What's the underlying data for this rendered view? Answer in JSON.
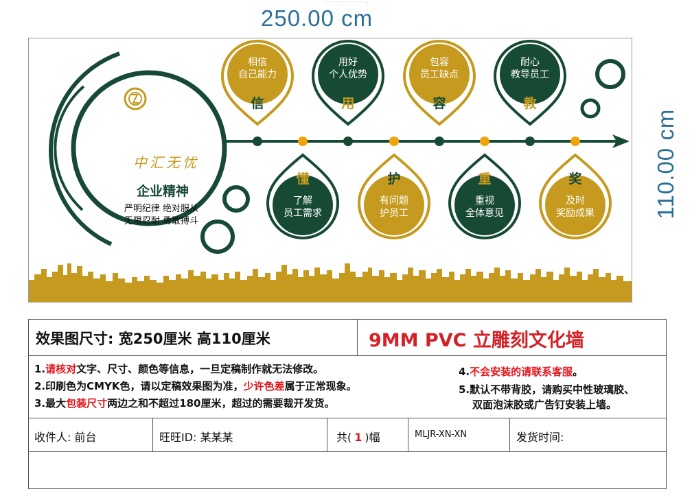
{
  "dimensions": {
    "width": "250.00 cm",
    "height": "110.00 cm"
  },
  "brand": {
    "name": "中汇无忧",
    "spirit": "企业精神",
    "motto_line1": "严明纪律  绝对服从",
    "motto_line2": "无限忍耐  勇敢搏斗"
  },
  "colors": {
    "green": "#174a35",
    "gold": "#c59a1f",
    "red": "#e3151b",
    "blue": "#2a6f98"
  },
  "top_drops": [
    {
      "char": "信",
      "line1": "相信",
      "line2": "自己能力",
      "color": "gold"
    },
    {
      "char": "用",
      "line1": "用好",
      "line2": "个人优势",
      "color": "green"
    },
    {
      "char": "容",
      "line1": "包容",
      "line2": "员工缺点",
      "color": "gold"
    },
    {
      "char": "教",
      "line1": "耐心",
      "line2": "教导员工",
      "color": "green"
    }
  ],
  "bottom_drops": [
    {
      "char": "懂",
      "line1": "了解",
      "line2": "员工需求",
      "color": "green"
    },
    {
      "char": "护",
      "line1": "有问题",
      "line2": "护员工",
      "color": "gold"
    },
    {
      "char": "重",
      "line1": "重视",
      "line2": "全体意见",
      "color": "green"
    },
    {
      "char": "奖",
      "line1": "及时",
      "line2": "奖励成果",
      "color": "gold"
    }
  ],
  "info": {
    "size_title": "效果图尺寸: 宽250厘米  高110厘米",
    "product": "9MM PVC 立雕刻文化墙",
    "note1_a": "1.",
    "note1_red": "请核对",
    "note1_b": "文字、尺寸、颜色等信息，一旦定稿制作就无法修改。",
    "note2_a": "2.印刷色为CMYK色，请以定稿效果图为准，",
    "note2_red": "少许色差",
    "note2_b": "属于正常现象。",
    "note3_a": "3.最大",
    "note3_red": "包装尺寸",
    "note3_b": "两边之和不超过180厘米，超过的需要裁开发货。",
    "note4_a": "4.",
    "note4_red": "不会安装的请联系客服",
    "note4_b": "。",
    "note5_line1": "5.默认不带背胶，请购买中性玻璃胶、",
    "note5_line2": "双面泡沫胶或广告钉安装上墙。",
    "recipient": "收件人:  前台",
    "wangwang": "旺旺ID:  某某某",
    "count_a": "共(",
    "count_num": "1",
    "count_b": ")幅",
    "code": "MLJR-XN-XN",
    "ship_time": "发货时间:"
  }
}
